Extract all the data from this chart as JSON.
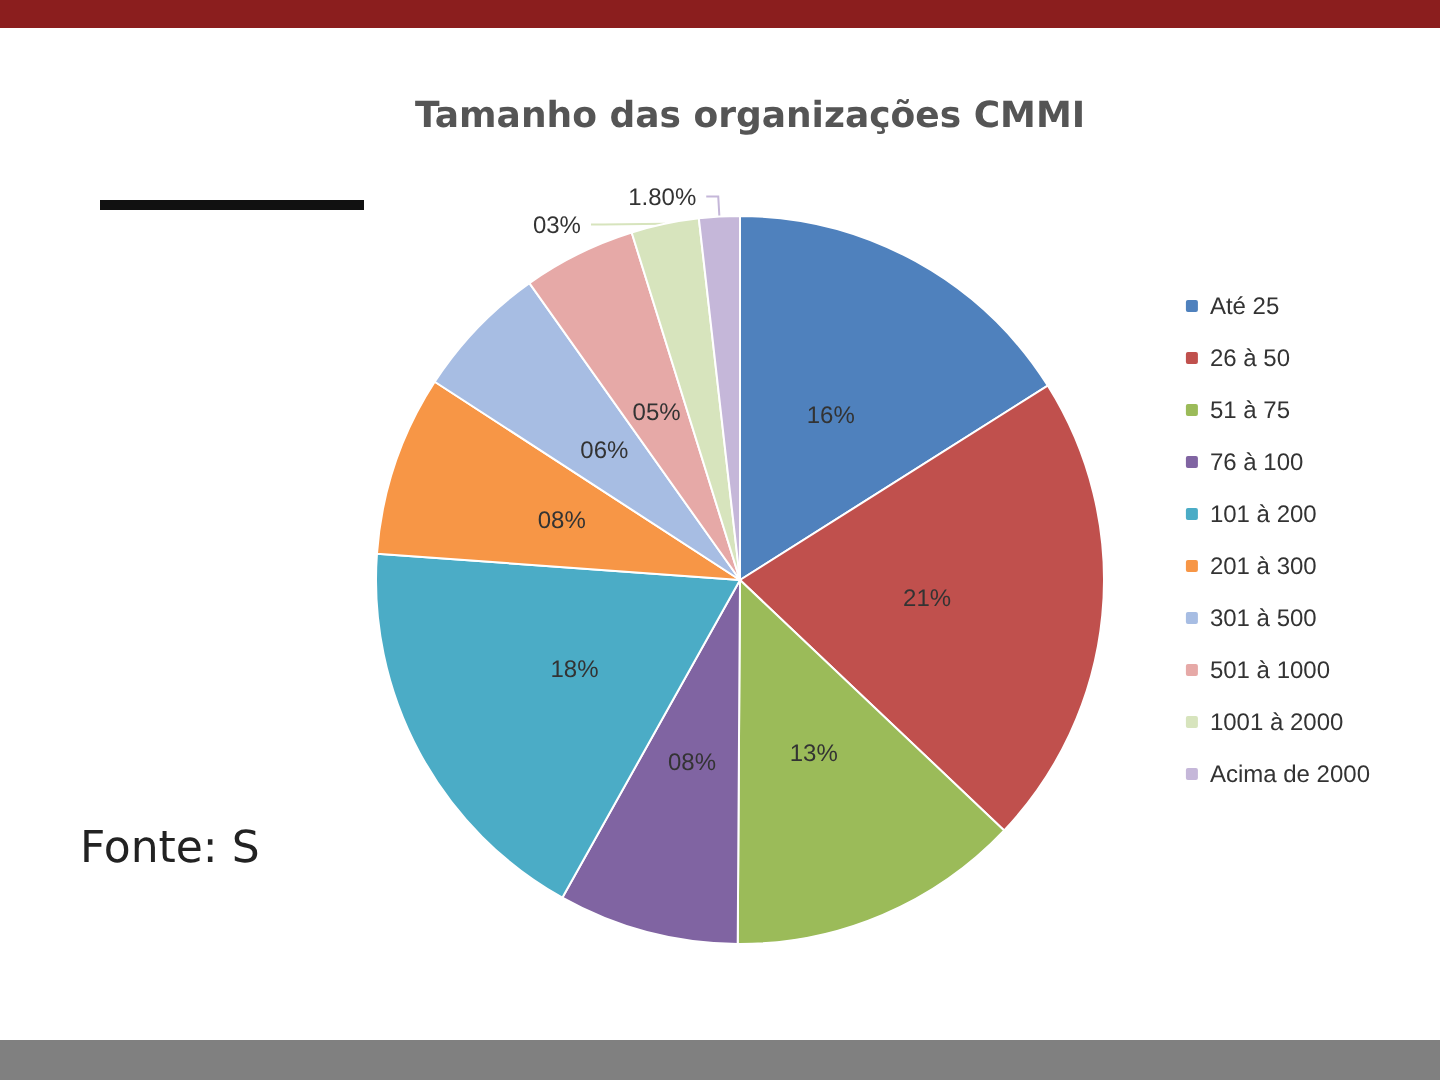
{
  "chart_data": {
    "type": "pie",
    "title": "Tamanho das organizações CMMI",
    "categories": [
      "Até 25",
      "26 à 50",
      "51 à 75",
      "76 à 100",
      "101 à 200",
      "201 à 300",
      "301 à 500",
      "501 à 1000",
      "1001 à 2000",
      "Acima de 2000"
    ],
    "values": [
      16,
      21,
      13,
      8,
      18,
      8,
      6,
      5,
      3,
      1.8
    ],
    "value_labels": [
      "16%",
      "21%",
      "13%",
      "08%",
      "18%",
      "08%",
      "06%",
      "05%",
      "03%",
      "1.80%"
    ],
    "colors": [
      "#4f81bd",
      "#c0504d",
      "#9bbb59",
      "#8064a2",
      "#4bacc6",
      "#f79646",
      "#a7bde3",
      "#e6a9a7",
      "#d7e4bd",
      "#c5b7d9"
    ],
    "legend": "right",
    "annotations": [
      "Fonte: S"
    ]
  }
}
